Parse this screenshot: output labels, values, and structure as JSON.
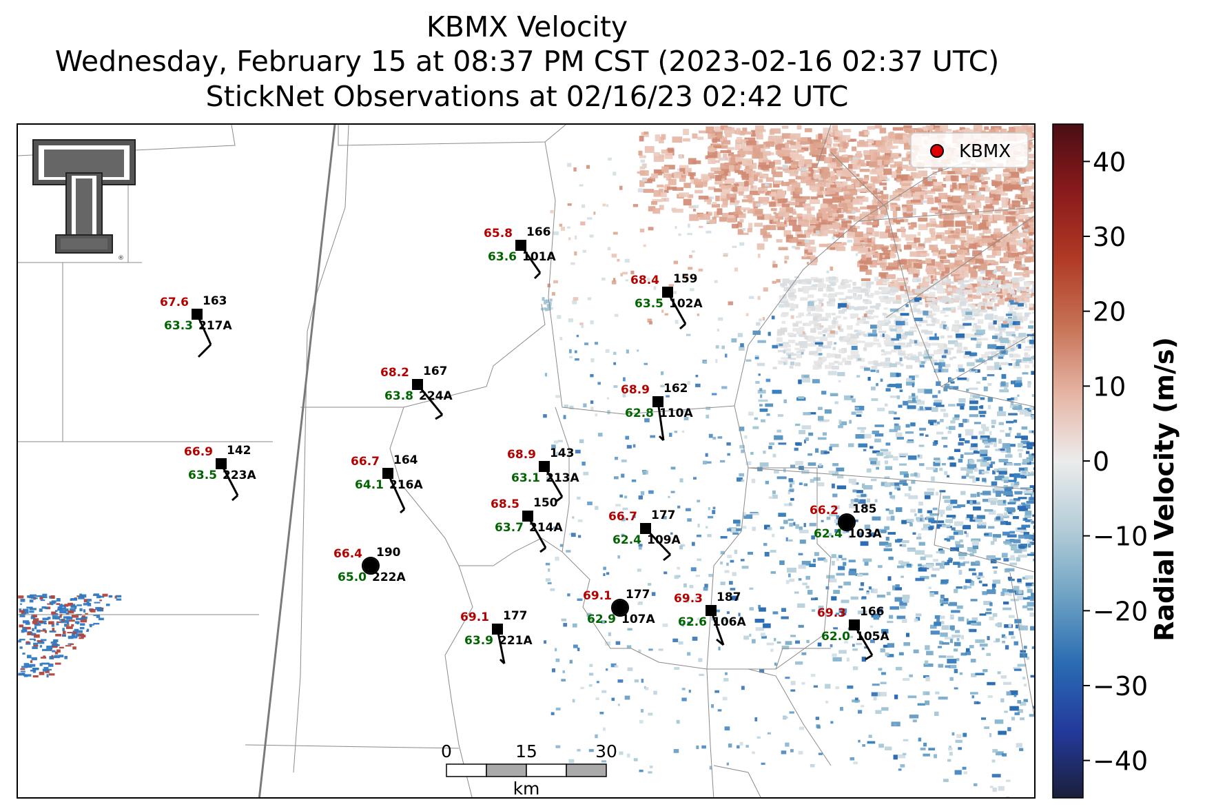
{
  "title": {
    "line1": "KBMX Velocity",
    "line2": "Wednesday, February 15 at 08:37 PM CST (2023-02-16 02:37 UTC)",
    "line3": "StickNet Observations at 02/16/23 02:42 UTC"
  },
  "legend": {
    "label": "KBMX",
    "marker_color": "#e00000"
  },
  "colorbar": {
    "label": "Radial Velocity (m/s)",
    "ticks": [
      "40",
      "30",
      "20",
      "10",
      "0",
      "−10",
      "−20",
      "−30",
      "−40"
    ],
    "range": [
      -45,
      45
    ],
    "colors": [
      "#1b1f3b",
      "#233a9c",
      "#2a6cb3",
      "#6fa3c4",
      "#b4cdd8",
      "#ececec",
      "#e6b4a4",
      "#c67255",
      "#b03a25",
      "#8a1a1c",
      "#4a0f14"
    ]
  },
  "scale_bar": {
    "ticks": [
      "0",
      "15",
      "30"
    ],
    "unit": "km"
  },
  "colors": {
    "temperature": "#b50000",
    "dewpoint": "#006400",
    "station_text": "#000000"
  },
  "stations": [
    {
      "id": "101A",
      "temp": "65.8",
      "dew": "63.6",
      "pressure": "166",
      "marker": "square"
    },
    {
      "id": "102A",
      "temp": "68.4",
      "dew": "63.5",
      "pressure": "159",
      "marker": "square"
    },
    {
      "id": "217A",
      "temp": "67.6",
      "dew": "63.3",
      "pressure": "163",
      "marker": "square"
    },
    {
      "id": "224A",
      "temp": "68.2",
      "dew": "63.8",
      "pressure": "167",
      "marker": "square"
    },
    {
      "id": "110A",
      "temp": "68.9",
      "dew": "62.8",
      "pressure": "162",
      "marker": "square"
    },
    {
      "id": "223A",
      "temp": "66.9",
      "dew": "63.5",
      "pressure": "142",
      "marker": "square"
    },
    {
      "id": "216A",
      "temp": "66.7",
      "dew": "64.1",
      "pressure": "164",
      "marker": "square"
    },
    {
      "id": "213A",
      "temp": "68.9",
      "dew": "63.1",
      "pressure": "143",
      "marker": "square"
    },
    {
      "id": "214A",
      "temp": "68.5",
      "dew": "63.7",
      "pressure": "150",
      "marker": "square"
    },
    {
      "id": "109A",
      "temp": "66.7",
      "dew": "62.4",
      "pressure": "177",
      "marker": "square"
    },
    {
      "id": "103A",
      "temp": "66.2",
      "dew": "62.4",
      "pressure": "185",
      "marker": "circle"
    },
    {
      "id": "222A",
      "temp": "66.4",
      "dew": "65.0",
      "pressure": "190",
      "marker": "circle"
    },
    {
      "id": "107A",
      "temp": "69.1",
      "dew": "62.9",
      "pressure": "177",
      "marker": "circle"
    },
    {
      "id": "106A",
      "temp": "69.3",
      "dew": "62.6",
      "pressure": "187",
      "marker": "square"
    },
    {
      "id": "221A",
      "temp": "69.1",
      "dew": "63.9",
      "pressure": "177",
      "marker": "square"
    },
    {
      "id": "105A",
      "temp": "69.3",
      "dew": "62.0",
      "pressure": "166",
      "marker": "square"
    }
  ]
}
